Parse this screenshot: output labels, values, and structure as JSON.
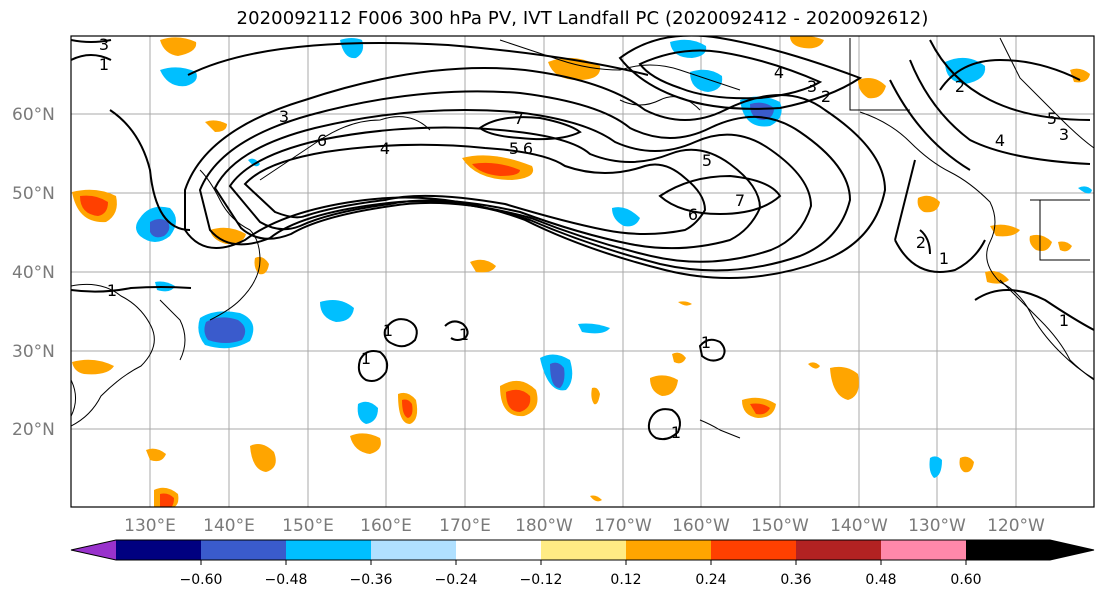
{
  "title": "2020092112 F006 300 hPa PV, IVT Landfall PC (2020092412 - 2020092612)",
  "lat_labels": [
    "60°N",
    "50°N",
    "40°N",
    "30°N",
    "20°N"
  ],
  "lon_labels": [
    "130°E",
    "140°E",
    "150°E",
    "160°E",
    "170°E",
    "180°W",
    "170°W",
    "160°W",
    "150°W",
    "140°W",
    "130°W",
    "120°W"
  ],
  "colorbar": {
    "tick_labels": [
      "−0.60",
      "−0.48",
      "−0.36",
      "−0.24",
      "−0.12",
      "0.12",
      "0.24",
      "0.36",
      "0.48",
      "0.60"
    ],
    "colors": [
      "#9932CC",
      "#000080",
      "#3A5BCC",
      "#00BFFF",
      "#B0E0FF",
      "#FFFFFF",
      "#FFEB84",
      "#FFA500",
      "#FF4000",
      "#B22222",
      "#FF88AA"
    ]
  },
  "contour_labels": [
    "3",
    "1",
    "3",
    "6",
    "4",
    "7",
    "5",
    "6",
    "4",
    "3",
    "2",
    "5",
    "7",
    "6",
    "2",
    "1",
    "4",
    "5",
    "3",
    "1",
    "1",
    "1",
    "1",
    "1",
    "1",
    "2",
    "1"
  ]
}
